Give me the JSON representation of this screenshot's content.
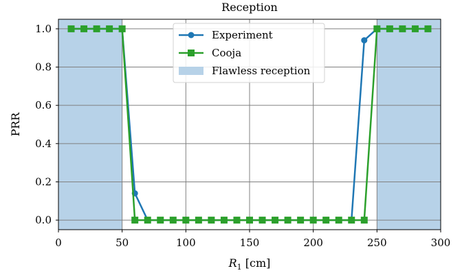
{
  "chart_data": {
    "type": "line",
    "title": "Reception",
    "xlabel_var": "R",
    "xlabel_sub": "1",
    "xlabel_unit": " [cm]",
    "ylabel": "PRR",
    "xlim": [
      0,
      300
    ],
    "ylim": [
      -0.05,
      1.05
    ],
    "xticks": [
      0,
      50,
      100,
      150,
      200,
      250,
      300
    ],
    "xtick_labels": [
      "0",
      "50",
      "100",
      "150",
      "200",
      "250",
      "300"
    ],
    "yticks": [
      0.0,
      0.2,
      0.4,
      0.6,
      0.8,
      1.0
    ],
    "ytick_labels": [
      "0.0",
      "0.2",
      "0.4",
      "0.6",
      "0.8",
      "1.0"
    ],
    "grid": true,
    "legend_position": "top-center",
    "shaded_regions": {
      "name": "Flawless reception",
      "color": "#b7d2e8",
      "ranges": [
        [
          0,
          50
        ],
        [
          250,
          300
        ]
      ]
    },
    "series": [
      {
        "name": "Experiment",
        "color": "#1f77b4",
        "marker": "circle",
        "x": [
          10,
          20,
          30,
          40,
          50,
          60,
          70,
          80,
          90,
          100,
          110,
          120,
          130,
          140,
          150,
          160,
          170,
          180,
          190,
          200,
          210,
          220,
          230,
          240,
          250,
          260,
          270,
          280,
          290
        ],
        "y": [
          1.0,
          1.0,
          1.0,
          1.0,
          1.0,
          0.14,
          0.0,
          0.0,
          0.0,
          0.0,
          0.0,
          0.0,
          0.0,
          0.0,
          0.0,
          0.0,
          0.0,
          0.0,
          0.0,
          0.0,
          0.0,
          0.0,
          0.0,
          0.94,
          1.0,
          1.0,
          1.0,
          1.0,
          1.0
        ]
      },
      {
        "name": "Cooja",
        "color": "#2ca02c",
        "marker": "square",
        "x": [
          10,
          20,
          30,
          40,
          50,
          60,
          70,
          80,
          90,
          100,
          110,
          120,
          130,
          140,
          150,
          160,
          170,
          180,
          190,
          200,
          210,
          220,
          230,
          240,
          250,
          260,
          270,
          280,
          290
        ],
        "y": [
          1.0,
          1.0,
          1.0,
          1.0,
          1.0,
          0.0,
          0.0,
          0.0,
          0.0,
          0.0,
          0.0,
          0.0,
          0.0,
          0.0,
          0.0,
          0.0,
          0.0,
          0.0,
          0.0,
          0.0,
          0.0,
          0.0,
          0.0,
          0.0,
          1.0,
          1.0,
          1.0,
          1.0,
          1.0
        ]
      }
    ]
  }
}
